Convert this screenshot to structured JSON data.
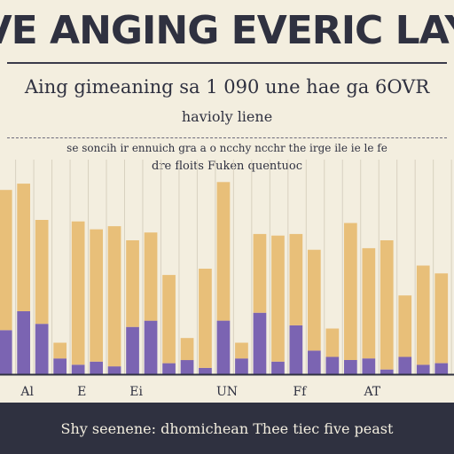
{
  "header": {
    "title": "VE ANGING EVERIC LAY",
    "subtitle": "Aing gimeaning sa 1 090 une hae ga 6OVR",
    "subsubtitle": "havioly liene",
    "legend_line": "se soncih ir ennuich gra a o ncchy ncchr the irge ile ie le fe",
    "legend_line2": "dre floits Fuken quentuoc"
  },
  "footer": {
    "text": "Shy seenene: dhomichean Thee tiec five peast"
  },
  "colors": {
    "background": "#f3eedf",
    "series_tan": "#e8bf79",
    "series_purple": "#7b64b2",
    "ink": "#2f3140"
  },
  "chart_data": {
    "type": "bar",
    "stacked": true,
    "categories": [
      "",
      "",
      "",
      "",
      "",
      "",
      "",
      "",
      "",
      "",
      "",
      "",
      "",
      "",
      "",
      "",
      "",
      "",
      "",
      "",
      "",
      "",
      "",
      "",
      ""
    ],
    "x_tick_labels": [
      "",
      "Al",
      "",
      "",
      "E",
      "",
      "",
      "Ei",
      "",
      "",
      "",
      "",
      "UN",
      "",
      "",
      "",
      "Ff",
      "",
      "",
      "",
      "AT",
      "",
      "",
      "",
      ""
    ],
    "series": [
      {
        "values": [
          28,
          40,
          32,
          10,
          6,
          8,
          5,
          30,
          34,
          7,
          9,
          4,
          34,
          10,
          39,
          8,
          31,
          15,
          11,
          9,
          10,
          3,
          11,
          6,
          7
        ]
      },
      {
        "values": [
          89,
          81,
          66,
          10,
          91,
          84,
          89,
          55,
          56,
          56,
          14,
          63,
          88,
          10,
          50,
          80,
          58,
          64,
          18,
          87,
          70,
          82,
          39,
          63,
          57
        ]
      }
    ],
    "ylim": [
      0,
      125
    ],
    "grid": true
  }
}
